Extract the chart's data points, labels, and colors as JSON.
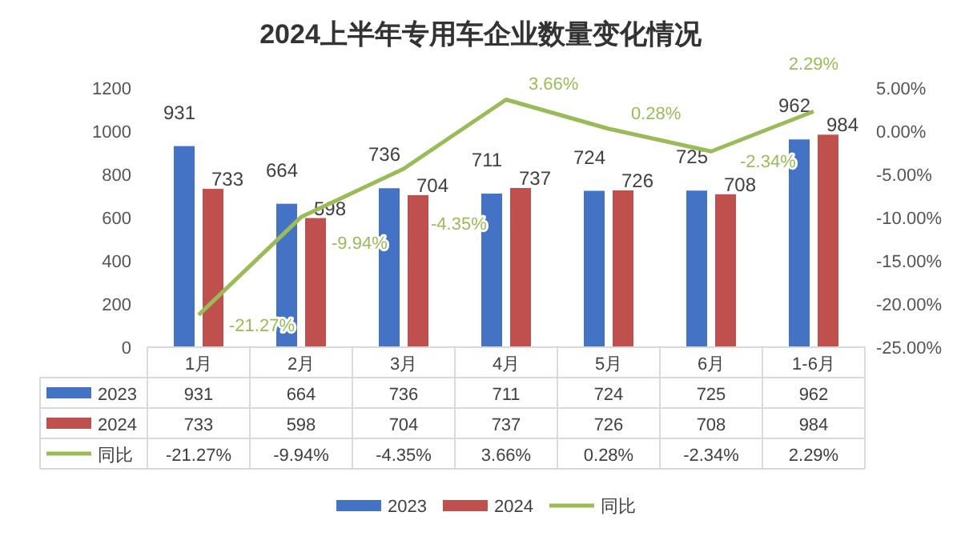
{
  "chart_data": {
    "type": "bar",
    "title": "2024上半年专用车企业数量变化情况",
    "categories": [
      "1月",
      "2月",
      "3月",
      "4月",
      "5月",
      "6月",
      "1-6月"
    ],
    "series": [
      {
        "name": "2023",
        "color": "#4472c4",
        "values": [
          931,
          664,
          736,
          711,
          724,
          725,
          962
        ],
        "value_labels": [
          "931",
          "664",
          "736",
          "711",
          "724",
          "725",
          "962"
        ]
      },
      {
        "name": "2024",
        "color": "#c0504d",
        "values": [
          733,
          598,
          704,
          737,
          726,
          708,
          984
        ],
        "value_labels": [
          "733",
          "598",
          "704",
          "737",
          "726",
          "708",
          "984"
        ]
      },
      {
        "name": "同比",
        "type": "line",
        "axis": "y2",
        "color": "#9bbb59",
        "marker": "none",
        "values": [
          -21.27,
          -9.94,
          -4.35,
          3.66,
          0.28,
          -2.34,
          2.29
        ],
        "value_labels": [
          "-21.27%",
          "-9.94%",
          "-4.35%",
          "3.66%",
          "0.28%",
          "-2.34%",
          "2.29%"
        ]
      }
    ],
    "ylim": [
      0,
      1200
    ],
    "yticks": [
      0,
      200,
      400,
      600,
      800,
      1000,
      1200
    ],
    "y2lim": [
      -25,
      5
    ],
    "y2ticks": [
      {
        "value": -25,
        "label": "-25.00%"
      },
      {
        "value": -20,
        "label": "-20.00%"
      },
      {
        "value": -15,
        "label": "-15.00%"
      },
      {
        "value": -10,
        "label": "-10.00%"
      },
      {
        "value": -5,
        "label": "-5.00%"
      },
      {
        "value": 0,
        "label": "0.00%"
      },
      {
        "value": 5,
        "label": "5.00%"
      }
    ],
    "legend": "bottom"
  }
}
